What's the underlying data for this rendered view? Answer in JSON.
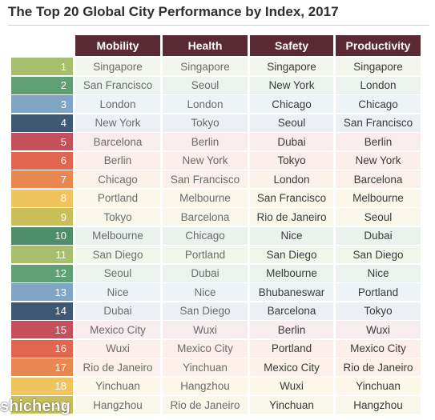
{
  "title": "The Top 20 Global City Performance by Index, 2017",
  "columns": [
    "Mobility",
    "Health",
    "Safety",
    "Productivity"
  ],
  "rows": [
    {
      "rank": "1",
      "color": "#a7bf6d",
      "cities": [
        "Singapore",
        "Singapore",
        "Singapore",
        "Singapore"
      ]
    },
    {
      "rank": "2",
      "color": "#5f9f73",
      "cities": [
        "San Francisco",
        "Seoul",
        "New York",
        "London"
      ]
    },
    {
      "rank": "3",
      "color": "#7fa4c4",
      "cities": [
        "London",
        "London",
        "Chicago",
        "Chicago"
      ]
    },
    {
      "rank": "4",
      "color": "#3f5873",
      "cities": [
        "New York",
        "Tokyo",
        "Seoul",
        "San Francisco"
      ]
    },
    {
      "rank": "5",
      "color": "#c4505c",
      "cities": [
        "Barcelona",
        "Berlin",
        "Dubai",
        "Berlin"
      ]
    },
    {
      "rank": "6",
      "color": "#e06650",
      "cities": [
        "Berlin",
        "New York",
        "Tokyo",
        "New York"
      ]
    },
    {
      "rank": "7",
      "color": "#e8874f",
      "cities": [
        "Chicago",
        "San Francisco",
        "London",
        "Barcelona"
      ]
    },
    {
      "rank": "8",
      "color": "#efc45f",
      "cities": [
        "Portland",
        "Melbourne",
        "San Francisco",
        "Melbourne"
      ]
    },
    {
      "rank": "9",
      "color": "#c9bf59",
      "cities": [
        "Tokyo",
        "Barcelona",
        "Rio de Janeiro",
        "Seoul"
      ]
    },
    {
      "rank": "10",
      "color": "#4e8f6a",
      "cities": [
        "Melbourne",
        "Chicago",
        "Nice",
        "Dubai"
      ]
    },
    {
      "rank": "11",
      "color": "#a7bf6d",
      "cities": [
        "San Diego",
        "Portland",
        "San Diego",
        "San Diego"
      ]
    },
    {
      "rank": "12",
      "color": "#5f9f73",
      "cities": [
        "Seoul",
        "Dubai",
        "Melbourne",
        "Nice"
      ]
    },
    {
      "rank": "13",
      "color": "#7fa4c4",
      "cities": [
        "Nice",
        "Nice",
        "Bhubaneswar",
        "Portland"
      ]
    },
    {
      "rank": "14",
      "color": "#3f5873",
      "cities": [
        "Dubai",
        "San Diego",
        "Barcelona",
        "Tokyo"
      ]
    },
    {
      "rank": "15",
      "color": "#c4505c",
      "cities": [
        "Mexico City",
        "Wuxi",
        "Berlin",
        "Wuxi"
      ]
    },
    {
      "rank": "16",
      "color": "#e06650",
      "cities": [
        "Wuxi",
        "Mexico City",
        "Portland",
        "Mexico City"
      ]
    },
    {
      "rank": "17",
      "color": "#e8874f",
      "cities": [
        "Rio de Janeiro",
        "Yinchuan",
        "Mexico City",
        "Rio de Janeiro"
      ]
    },
    {
      "rank": "18",
      "color": "#efc45f",
      "cities": [
        "Yinchuan",
        "Hangzhou",
        "Wuxi",
        "Yinchuan"
      ]
    },
    {
      "rank": "19",
      "color": "#c9bf59",
      "cities": [
        "Hangzhou",
        "Rio de Janeiro",
        "Yinchuan",
        "Hangzhou"
      ]
    }
  ],
  "row_tints": [
    "#f3f6ec",
    "#ecf3ee",
    "#eef3f8",
    "#eceff3",
    "#f8ecee",
    "#fbeeeb",
    "#fcf1ea",
    "#fdf7ea",
    "#f8f7ea",
    "#ebf2ee"
  ],
  "bold_columns": [
    2,
    3
  ],
  "watermark": "shicheng"
}
